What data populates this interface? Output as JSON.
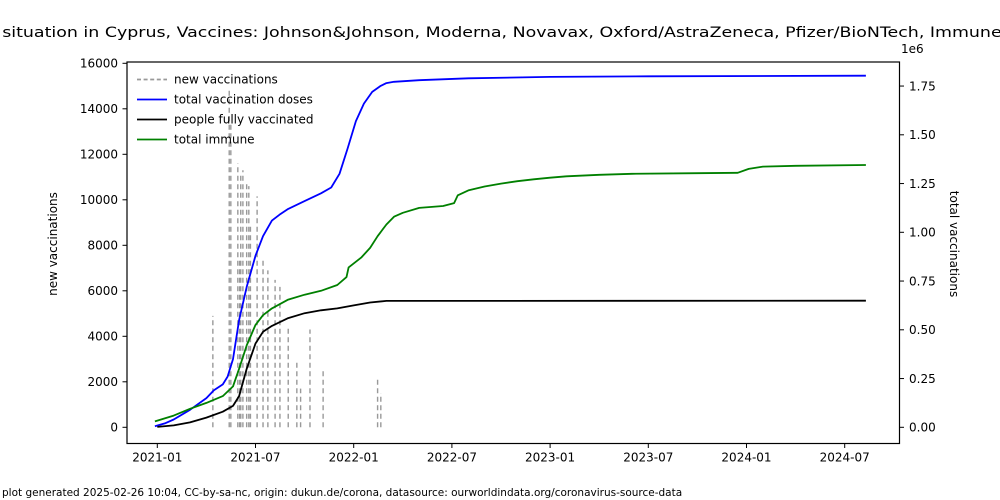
{
  "title": "on situation in Cyprus, Vaccines: Johnson&Johnson, Moderna, Novavax, Oxford/AstraZeneca, Pfizer/BioNTech, Immune ra",
  "footer": "plot generated 2025-02-26 10:04, CC-by-sa-nc, origin: dukun.de/corona, datasource: ourworldindata.org/coronavirus-source-data",
  "colors": {
    "new_vaccinations": "#999999",
    "total_doses": "#0000ff",
    "fully_vaccinated": "#000000",
    "total_immune": "#008000",
    "footer_text": "#808080",
    "axis": "#000000"
  },
  "chart_data": {
    "type": "line",
    "title": "on situation in Cyprus, Vaccines: Johnson&Johnson, Moderna, Novavax, Oxford/AstraZeneca, Pfizer/BioNTech, Immune ra",
    "grid": false,
    "legend_position": "upper left",
    "x_axis": {
      "tick_labels": [
        "2021-01",
        "2021-07",
        "2022-01",
        "2022-07",
        "2023-01",
        "2023-07",
        "2024-01",
        "2024-07"
      ]
    },
    "left_axis": {
      "label": "new vaccinations",
      "ticks": [
        0,
        2000,
        4000,
        6000,
        8000,
        10000,
        12000,
        14000,
        16000
      ],
      "range": [
        0,
        16000
      ]
    },
    "right_axis": {
      "label": "total vaccinations",
      "multiplier": "1e6",
      "tick_labels": [
        "0.00",
        "0.25",
        "0.50",
        "0.75",
        "1.00",
        "1.25",
        "1.50",
        "1.75"
      ],
      "range": [
        0,
        1810000
      ]
    },
    "legend": [
      {
        "label": "new vaccinations",
        "color": "#999999",
        "dash": true
      },
      {
        "label": "total vaccination doses",
        "color": "#0000ff",
        "dash": false
      },
      {
        "label": "people fully vaccinated",
        "color": "#000000",
        "dash": false
      },
      {
        "label": "total immune",
        "color": "#008000",
        "dash": false
      }
    ],
    "series": [
      {
        "name": "new vaccinations",
        "axis": "left",
        "render": "spikes",
        "color": "#999999",
        "dash": true,
        "points": [
          [
            "2021-04-13",
            4900
          ],
          [
            "2021-05-13",
            14900
          ],
          [
            "2021-05-16",
            13300
          ],
          [
            "2021-05-29",
            11600
          ],
          [
            "2021-06-02",
            7400
          ],
          [
            "2021-06-04",
            11100
          ],
          [
            "2021-06-08",
            11300
          ],
          [
            "2021-06-15",
            10800
          ],
          [
            "2021-06-19",
            10600
          ],
          [
            "2021-06-22",
            8900
          ],
          [
            "2021-07-04",
            10150
          ],
          [
            "2021-07-15",
            7350
          ],
          [
            "2021-07-24",
            6900
          ],
          [
            "2021-08-07",
            6480
          ],
          [
            "2021-08-16",
            6170
          ],
          [
            "2021-09-01",
            4400
          ],
          [
            "2021-09-17",
            2900
          ],
          [
            "2021-09-24",
            1700
          ],
          [
            "2021-10-11",
            4300
          ],
          [
            "2021-11-05",
            2550
          ],
          [
            "2022-02-15",
            2100
          ],
          [
            "2022-02-21",
            1500
          ]
        ]
      },
      {
        "name": "total vaccination doses",
        "axis": "right",
        "render": "line",
        "color": "#0000ff",
        "dash": false,
        "points": [
          [
            "2020-12-27",
            5000
          ],
          [
            "2021-01-15",
            20000
          ],
          [
            "2021-02-01",
            40000
          ],
          [
            "2021-03-01",
            90000
          ],
          [
            "2021-04-01",
            150000
          ],
          [
            "2021-04-15",
            190000
          ],
          [
            "2021-05-01",
            220000
          ],
          [
            "2021-05-10",
            260000
          ],
          [
            "2021-05-20",
            350000
          ],
          [
            "2021-06-01",
            550000
          ],
          [
            "2021-06-15",
            720000
          ],
          [
            "2021-07-01",
            880000
          ],
          [
            "2021-07-15",
            980000
          ],
          [
            "2021-08-01",
            1060000
          ],
          [
            "2021-08-15",
            1090000
          ],
          [
            "2021-09-01",
            1120000
          ],
          [
            "2021-10-01",
            1160000
          ],
          [
            "2021-11-01",
            1200000
          ],
          [
            "2021-11-20",
            1230000
          ],
          [
            "2021-12-05",
            1300000
          ],
          [
            "2021-12-20",
            1430000
          ],
          [
            "2022-01-05",
            1570000
          ],
          [
            "2022-01-20",
            1660000
          ],
          [
            "2022-02-05",
            1720000
          ],
          [
            "2022-02-20",
            1750000
          ],
          [
            "2022-03-01",
            1765000
          ],
          [
            "2022-03-15",
            1772000
          ],
          [
            "2022-05-01",
            1780000
          ],
          [
            "2022-08-01",
            1790000
          ],
          [
            "2023-01-01",
            1797000
          ],
          [
            "2023-07-01",
            1800000
          ],
          [
            "2024-08-10",
            1803000
          ]
        ]
      },
      {
        "name": "people fully vaccinated",
        "axis": "right",
        "render": "line",
        "color": "#000000",
        "dash": false,
        "points": [
          [
            "2021-01-01",
            2000
          ],
          [
            "2021-02-01",
            10000
          ],
          [
            "2021-03-01",
            25000
          ],
          [
            "2021-04-01",
            50000
          ],
          [
            "2021-05-01",
            80000
          ],
          [
            "2021-05-20",
            110000
          ],
          [
            "2021-06-01",
            160000
          ],
          [
            "2021-06-15",
            300000
          ],
          [
            "2021-07-01",
            430000
          ],
          [
            "2021-07-15",
            490000
          ],
          [
            "2021-08-01",
            520000
          ],
          [
            "2021-09-01",
            560000
          ],
          [
            "2021-10-01",
            585000
          ],
          [
            "2021-11-01",
            600000
          ],
          [
            "2021-12-01",
            610000
          ],
          [
            "2022-01-01",
            625000
          ],
          [
            "2022-02-01",
            640000
          ],
          [
            "2022-03-01",
            648000
          ],
          [
            "2024-08-10",
            649000
          ]
        ]
      },
      {
        "name": "total immune",
        "axis": "right",
        "render": "line",
        "color": "#008000",
        "dash": false,
        "points": [
          [
            "2020-12-27",
            30000
          ],
          [
            "2021-02-01",
            60000
          ],
          [
            "2021-03-01",
            95000
          ],
          [
            "2021-04-01",
            125000
          ],
          [
            "2021-05-01",
            160000
          ],
          [
            "2021-05-20",
            210000
          ],
          [
            "2021-06-01",
            300000
          ],
          [
            "2021-06-15",
            420000
          ],
          [
            "2021-07-01",
            525000
          ],
          [
            "2021-07-15",
            575000
          ],
          [
            "2021-08-01",
            610000
          ],
          [
            "2021-09-01",
            655000
          ],
          [
            "2021-10-01",
            680000
          ],
          [
            "2021-11-01",
            700000
          ],
          [
            "2021-12-01",
            730000
          ],
          [
            "2021-12-18",
            770000
          ],
          [
            "2021-12-22",
            820000
          ],
          [
            "2022-01-15",
            870000
          ],
          [
            "2022-02-01",
            920000
          ],
          [
            "2022-02-15",
            980000
          ],
          [
            "2022-03-01",
            1040000
          ],
          [
            "2022-03-15",
            1080000
          ],
          [
            "2022-04-01",
            1100000
          ],
          [
            "2022-05-01",
            1125000
          ],
          [
            "2022-06-15",
            1135000
          ],
          [
            "2022-07-05",
            1150000
          ],
          [
            "2022-07-12",
            1190000
          ],
          [
            "2022-08-01",
            1215000
          ],
          [
            "2022-09-01",
            1235000
          ],
          [
            "2022-10-01",
            1250000
          ],
          [
            "2022-11-01",
            1262000
          ],
          [
            "2022-12-01",
            1272000
          ],
          [
            "2023-01-01",
            1280000
          ],
          [
            "2023-02-01",
            1287000
          ],
          [
            "2023-04-01",
            1295000
          ],
          [
            "2023-06-01",
            1300000
          ],
          [
            "2023-10-01",
            1303000
          ],
          [
            "2023-12-15",
            1305000
          ],
          [
            "2024-01-05",
            1325000
          ],
          [
            "2024-02-01",
            1337000
          ],
          [
            "2024-04-01",
            1341000
          ],
          [
            "2024-08-10",
            1345000
          ]
        ]
      }
    ]
  }
}
